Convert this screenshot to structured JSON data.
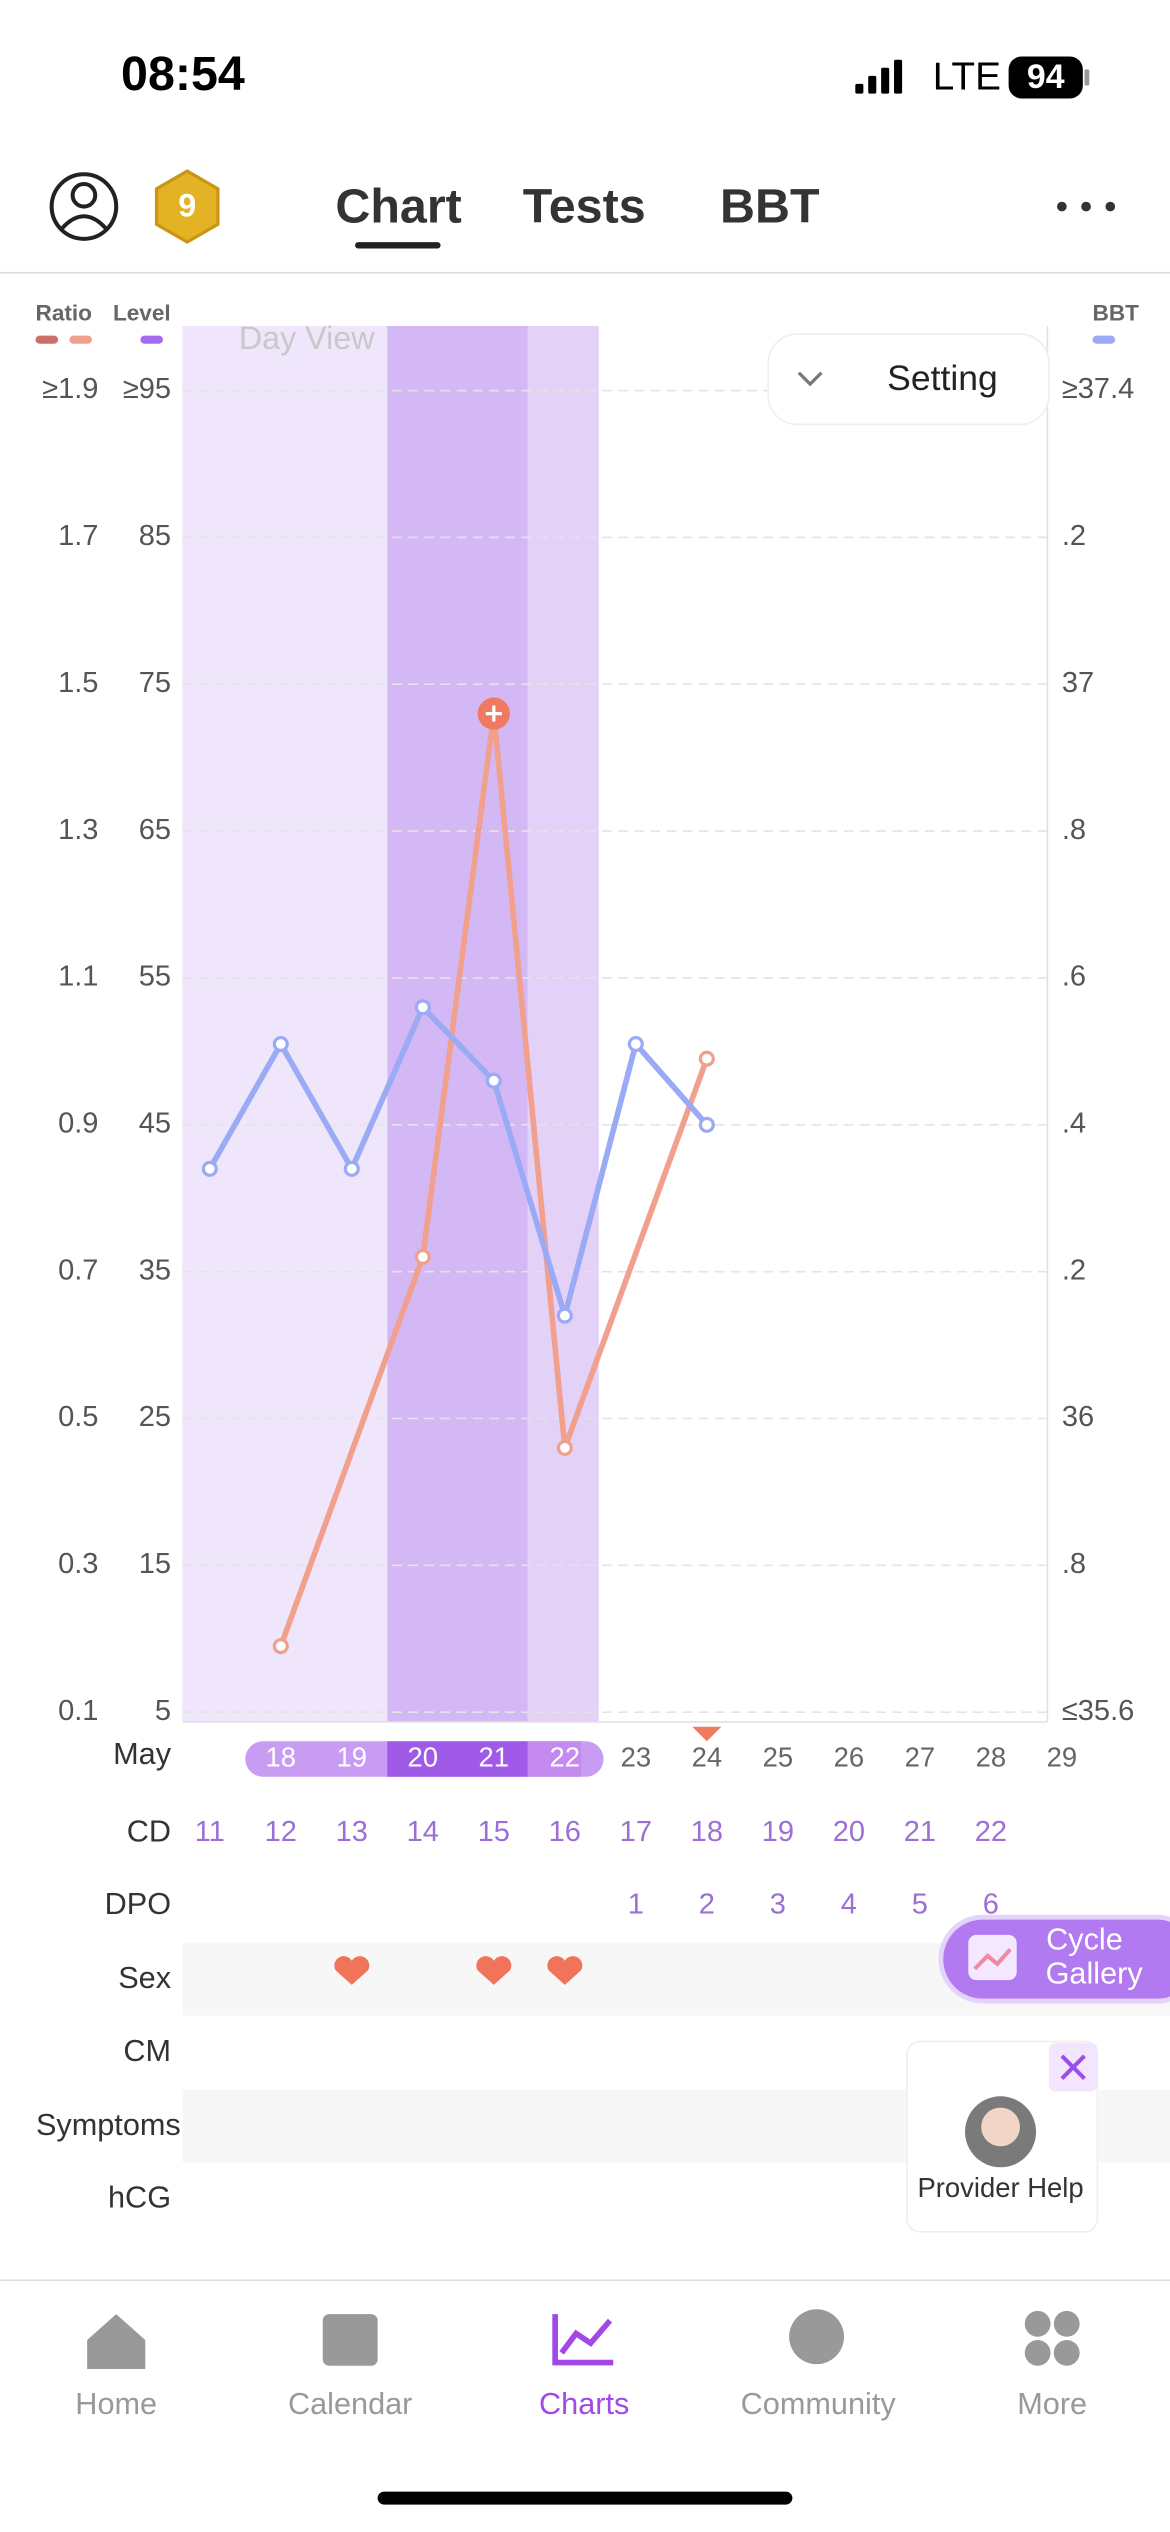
{
  "status_bar": {
    "time": "08:54",
    "network": "LTE",
    "battery": 94
  },
  "header": {
    "badge": 9,
    "tabs": [
      "Chart",
      "Tests",
      "BBT"
    ]
  },
  "chart": {
    "type": "line",
    "view_label": "Day View",
    "setting": "Setting",
    "level_label": "Level",
    "ylim": [
      0.1,
      1.9
    ],
    "yticks": [
      0.1,
      0.3,
      0.5,
      0.7,
      0.9,
      1.1,
      1.3,
      1.5,
      1.7,
      {
        "value": 1.9,
        "label": "≥1.9"
      }
    ],
    "level_lim": [
      5,
      95
    ],
    "level_ticks": [
      5,
      15,
      25,
      35,
      45,
      55,
      65,
      75,
      85,
      {
        "value": 95,
        "label": "≥95"
      }
    ],
    "y2lim": [
      35.6,
      37.4
    ],
    "y2ticks": [
      {
        "value": 35.6,
        "label": "≤35.6"
      },
      {
        "value": 35.8,
        "label": ".8"
      },
      36,
      {
        "value": 36.2,
        "label": ".2"
      },
      {
        "value": 36.4,
        "label": ".4"
      },
      {
        "value": 36.6,
        "label": ".6"
      },
      {
        "value": 36.8,
        "label": ".8"
      },
      37,
      {
        "value": 37.2,
        "label": ".2"
      },
      {
        "value": 37.4,
        "label": "≥37.4"
      }
    ],
    "grid": true,
    "series": [
      {
        "name": "Ratio",
        "color": "#f2a08e",
        "x": [
          12,
          14,
          15,
          16,
          18
        ],
        "values": [
          0.19,
          0.72,
          1.46,
          0.46,
          0.99
        ]
      },
      {
        "name": "BBT",
        "color": "#9aaaf5",
        "axis": "y2",
        "x": [
          11,
          12,
          13,
          14,
          15,
          16,
          17,
          18
        ],
        "values": [
          36.34,
          36.51,
          36.34,
          36.56,
          36.46,
          36.14,
          36.51,
          36.4
        ]
      }
    ],
    "month": "May",
    "dates": [
      18,
      19,
      20,
      21,
      22,
      23,
      24,
      25,
      26,
      27,
      28,
      29
    ],
    "cd": {
      "label": "CD",
      "values": [
        11,
        12,
        13,
        14,
        15,
        16,
        17,
        18,
        19,
        20,
        21,
        22
      ]
    },
    "dpo": {
      "label": "DPO",
      "values": [
        1,
        2,
        3,
        4,
        5,
        6
      ]
    },
    "row_labels": [
      "Sex",
      "CM",
      "Symptoms",
      "hCG"
    ]
  },
  "floating": {
    "gallery": [
      "Cycle",
      "Gallery"
    ],
    "provider": "Provider Help"
  },
  "nav": [
    "Home",
    "Calendar",
    "Charts",
    "Community",
    "More"
  ]
}
